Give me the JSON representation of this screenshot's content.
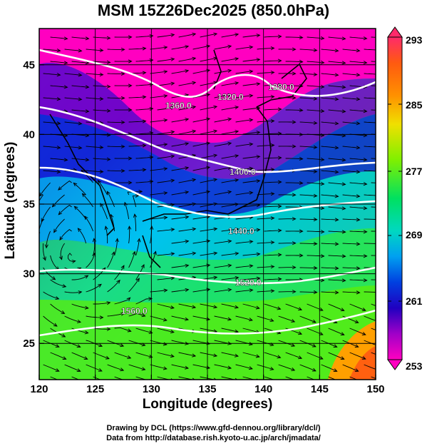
{
  "title": "MSM 15Z26Dec2025 (850.0hPa)",
  "axes": {
    "xlabel": "Longitude (degrees)",
    "ylabel": "Latitude  (degrees)",
    "xlim": [
      120,
      150
    ],
    "ylim": [
      22.4,
      47.6
    ],
    "xticks": [
      "120",
      "125",
      "130",
      "135",
      "140",
      "145",
      "150"
    ],
    "yticks": [
      "25",
      "30",
      "35",
      "40",
      "45"
    ],
    "grid": true
  },
  "colorbar": {
    "labels": [
      "293",
      "285",
      "277",
      "269",
      "261",
      "253"
    ],
    "range": [
      253,
      293
    ],
    "colors": [
      "#ff2a6a",
      "#ff5a10",
      "#ff8a00",
      "#ffc000",
      "#f0f000",
      "#a0f000",
      "#40f000",
      "#00e060",
      "#00d8b0",
      "#00c8f0",
      "#0090f0",
      "#0040e0",
      "#2000c0",
      "#8000c0",
      "#c000d0",
      "#ff00c0"
    ]
  },
  "contour_labels": [
    "1280.0",
    "1320.0",
    "1360.0",
    "1400.0",
    "1440.0",
    "1520.0",
    "1560.0"
  ],
  "footer": {
    "line1": "Drawing by DCL (https://www.gfd-dennou.org/library/dcl/)",
    "line2": "Data from http://database.rish.kyoto-u.ac.jp/arch/jmadata/"
  }
}
